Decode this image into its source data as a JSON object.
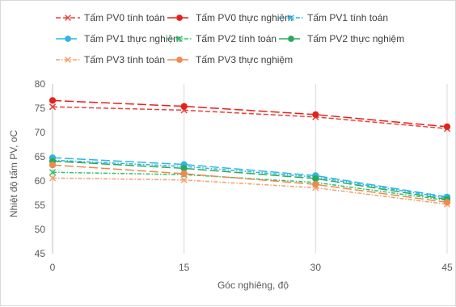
{
  "chart_data": {
    "type": "line",
    "title": "",
    "xlabel": "Góc nghiêng, độ",
    "ylabel": "Nhiệt độ tấm PV, oC",
    "x": [
      0,
      15,
      30,
      45
    ],
    "x_tick_labels": [
      "0",
      "15",
      "30",
      "45"
    ],
    "xlim": [
      0,
      45
    ],
    "ylim": [
      45,
      80
    ],
    "y_ticks": [
      45,
      50,
      55,
      60,
      65,
      70,
      75,
      80
    ],
    "grid": "vertical",
    "legend_position": "top",
    "series": [
      {
        "name": "Tấm PV0 tính toán",
        "values": [
          75.3,
          74.6,
          73.2,
          70.8
        ],
        "color": "#e8413b",
        "marker": "x",
        "dash": "dashed"
      },
      {
        "name": "Tấm PV0 thực nghiệm",
        "values": [
          76.6,
          75.4,
          73.7,
          71.2
        ],
        "color": "#e8201a",
        "marker": "circle",
        "dash": "long-dash"
      },
      {
        "name": "Tấm PV1 tính toán",
        "values": [
          64.3,
          63.0,
          60.8,
          56.5
        ],
        "color": "#2eb6e3",
        "marker": "x",
        "dash": "dash-dot"
      },
      {
        "name": "Tấm PV1 thực nghiệm",
        "values": [
          64.8,
          63.4,
          61.1,
          56.7
        ],
        "color": "#2eb6e3",
        "marker": "circle",
        "dash": "long-dash"
      },
      {
        "name": "Tấm PV2 tính toán",
        "values": [
          61.8,
          61.3,
          59.7,
          56.0
        ],
        "color": "#2dc36d",
        "marker": "x",
        "dash": "dash-dot"
      },
      {
        "name": "Tấm PV2 thực nghiệm",
        "values": [
          64.1,
          62.6,
          60.5,
          56.2
        ],
        "color": "#2aa85f",
        "marker": "circle",
        "dash": "long-dash"
      },
      {
        "name": "Tấm PV3 tính toán",
        "values": [
          60.6,
          60.2,
          58.6,
          55.2
        ],
        "color": "#f2a06b",
        "marker": "x",
        "dash": "dash-dot"
      },
      {
        "name": "Tấm PV3 thực nghiệm",
        "values": [
          63.3,
          61.5,
          59.3,
          55.6
        ],
        "color": "#ee8a4e",
        "marker": "circle",
        "dash": "long-dash"
      }
    ]
  }
}
